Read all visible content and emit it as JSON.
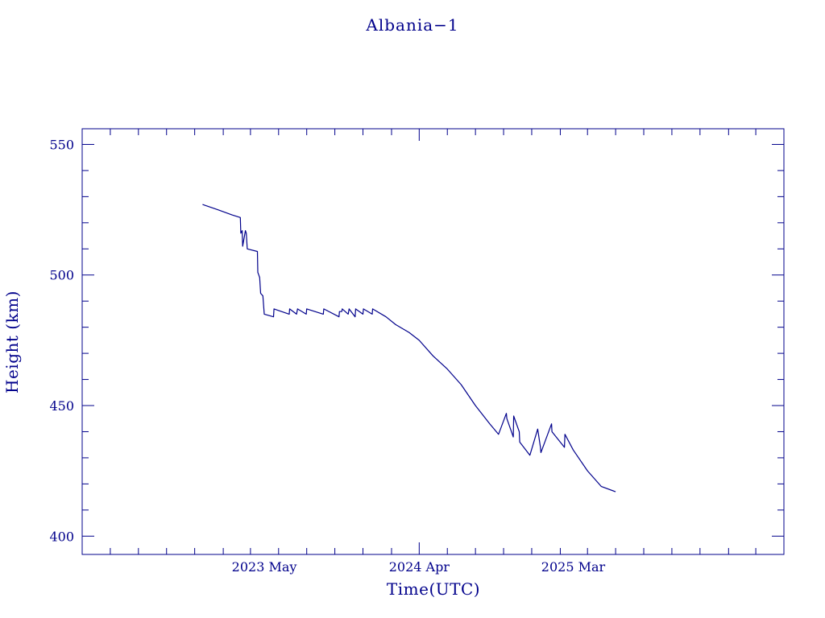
{
  "colors": {
    "ink": "#00008b",
    "background": "#ffffff"
  },
  "chart_data": {
    "type": "line",
    "title": "Albania−1",
    "xlabel": "Time(UTC)",
    "ylabel": "Height (km)",
    "x_axis": {
      "type": "date",
      "range": [
        "2022-04-01",
        "2026-06-01"
      ],
      "tick_labels": [
        {
          "date": "2023-05-01",
          "label": "2023 May"
        },
        {
          "date": "2024-04-01",
          "label": "2024 Apr"
        },
        {
          "date": "2025-03-01",
          "label": "2025 Mar"
        }
      ]
    },
    "y_axis": {
      "range": [
        393,
        556
      ],
      "major_ticks": [
        400,
        450,
        500,
        550
      ],
      "minor_step": 10
    },
    "grid": false,
    "legend": "none",
    "series": [
      {
        "x": [
          "2022-12-18",
          "2023-01-20",
          "2023-02-20",
          "2023-03-10",
          "2023-03-11",
          "2023-03-14",
          "2023-03-15",
          "2023-03-21",
          "2023-03-23",
          "2023-03-25",
          "2023-04-16",
          "2023-04-17",
          "2023-04-19",
          "2023-04-21",
          "2023-04-23",
          "2023-04-28",
          "2023-05-01",
          "2023-05-21",
          "2023-05-22",
          "2023-06-24",
          "2023-06-25",
          "2023-07-10",
          "2023-07-12",
          "2023-07-31",
          "2023-08-01",
          "2023-09-06",
          "2023-09-07",
          "2023-10-10",
          "2023-10-11",
          "2023-10-16",
          "2023-10-17",
          "2023-10-30",
          "2023-11-01",
          "2023-11-14",
          "2023-11-15",
          "2023-12-01",
          "2023-12-02",
          "2023-12-21",
          "2023-12-22",
          "2024-01-20",
          "2024-02-10",
          "2024-03-10",
          "2024-04-01",
          "2024-05-01",
          "2024-06-01",
          "2024-07-01",
          "2024-08-01",
          "2024-09-01",
          "2024-09-20",
          "2024-10-07",
          "2024-10-08",
          "2024-10-22",
          "2024-10-23",
          "2024-11-04",
          "2024-11-05",
          "2024-11-27",
          "2024-12-14",
          "2024-12-20",
          "2024-12-21",
          "2025-01-13",
          "2025-01-14",
          "2025-02-10",
          "2025-02-11",
          "2025-03-01",
          "2025-04-01",
          "2025-05-01",
          "2025-06-01"
        ],
        "y": [
          527,
          525,
          523,
          522,
          516,
          517,
          511,
          517,
          516,
          510,
          509,
          501,
          500,
          499,
          493,
          492,
          485,
          484,
          487,
          485,
          487,
          485,
          487,
          485,
          487,
          485,
          487,
          484,
          486,
          486,
          487,
          485,
          487,
          484,
          487,
          485,
          487,
          485,
          487,
          484,
          481,
          478,
          475,
          469,
          464,
          458,
          450,
          443,
          439,
          447,
          445,
          438,
          446,
          440,
          436,
          431,
          441,
          434,
          432,
          443,
          440,
          434,
          439,
          433,
          425,
          419,
          417
        ]
      }
    ]
  }
}
